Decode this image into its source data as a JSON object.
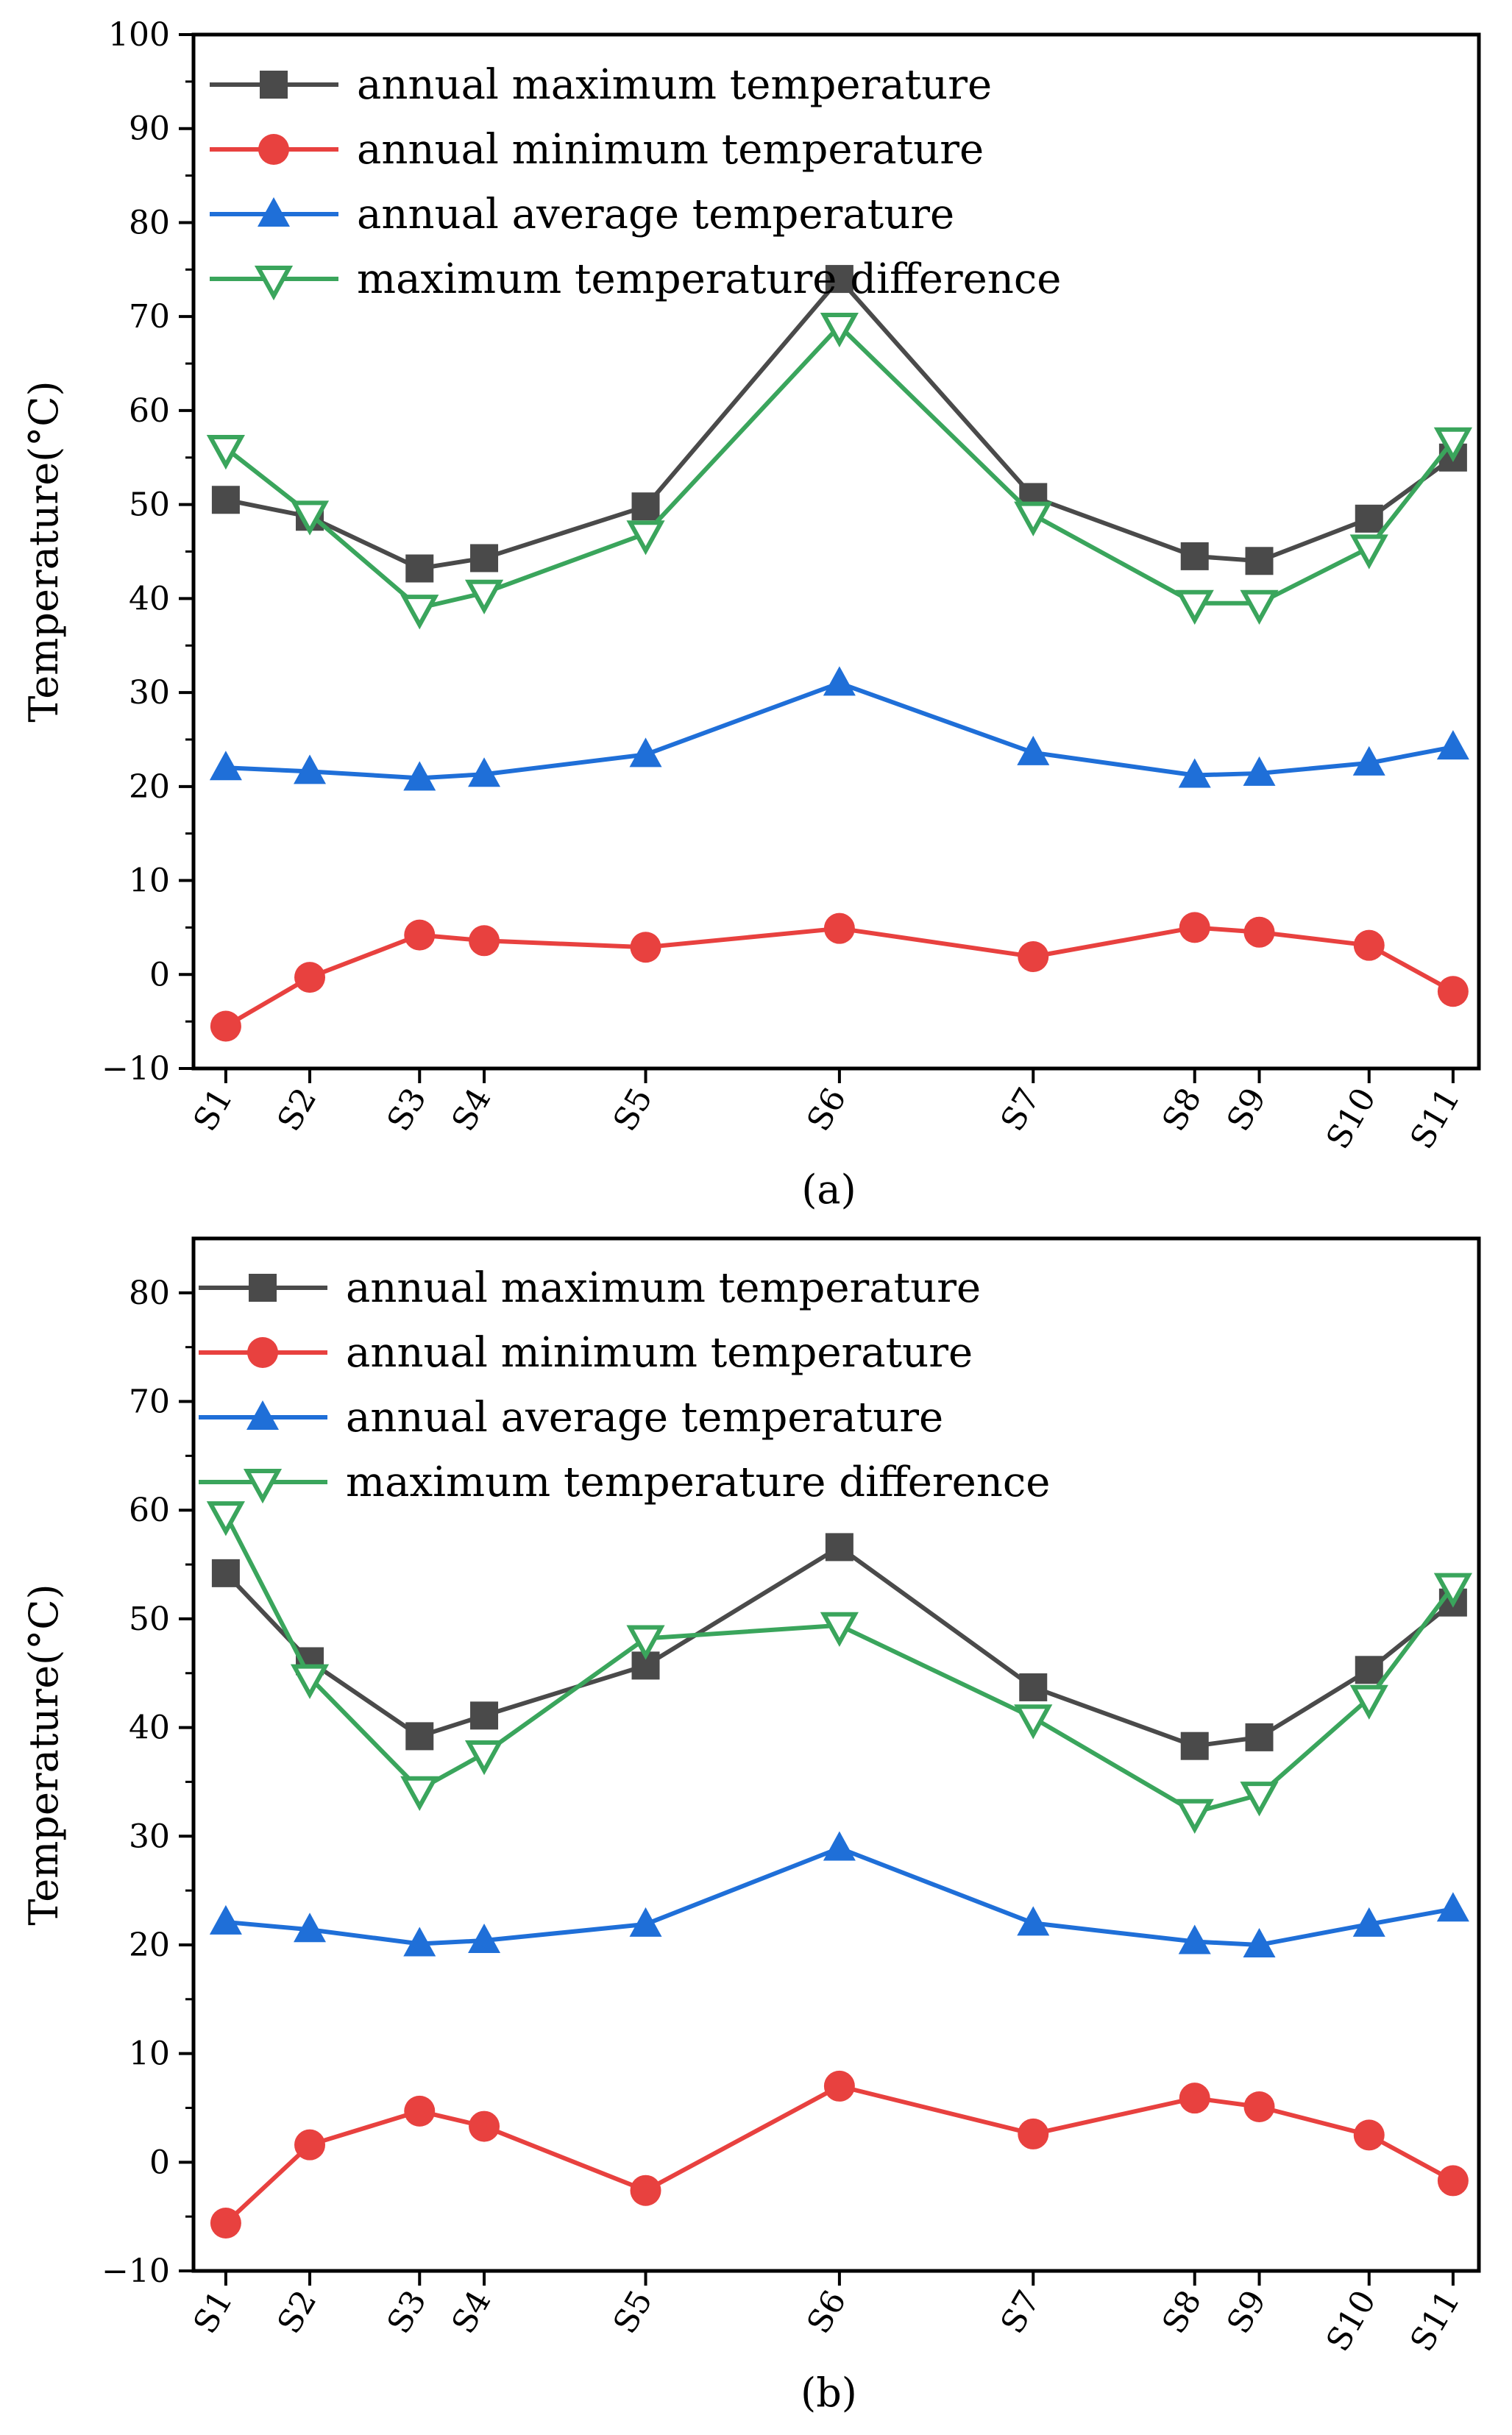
{
  "colors": {
    "max": "#4a4a4a",
    "min": "#e8413f",
    "avg": "#1f6fd8",
    "diff": "#3aa55c"
  },
  "chart_data": [
    {
      "type": "line",
      "caption": "(a)",
      "ylabel": "Temperature(°C)",
      "ylim": [
        -10,
        100
      ],
      "yticks": [
        -10,
        0,
        10,
        20,
        30,
        40,
        50,
        60,
        70,
        80,
        90,
        100
      ],
      "categories": [
        "S1",
        "S2",
        "S3",
        "S4",
        "S5",
        "S6",
        "S7",
        "S8",
        "S9",
        "S10",
        "S11"
      ],
      "x": [
        1,
        2.3,
        4,
        5,
        7.5,
        10.5,
        13.5,
        16,
        17,
        18.7,
        20
      ],
      "series": [
        {
          "key": "max",
          "name": "annual maximum temperature",
          "marker": "square",
          "values": [
            50.5,
            48.7,
            43.2,
            44.3,
            49.8,
            74.0,
            50.8,
            44.5,
            44.0,
            48.5,
            55.0
          ]
        },
        {
          "key": "min",
          "name": "annual minimum temperature",
          "marker": "circle",
          "values": [
            -5.5,
            -0.3,
            4.2,
            3.6,
            2.9,
            4.9,
            1.9,
            5.0,
            4.5,
            3.1,
            -1.8
          ]
        },
        {
          "key": "avg",
          "name": "annual average temperature",
          "marker": "triangle-up",
          "values": [
            22.0,
            21.6,
            20.9,
            21.3,
            23.4,
            31.0,
            23.6,
            21.2,
            21.4,
            22.5,
            24.2
          ]
        },
        {
          "key": "diff",
          "name": "maximum temperature difference",
          "marker": "triangle-down-open",
          "values": [
            56.0,
            49.0,
            39.0,
            40.6,
            46.9,
            69.0,
            48.9,
            39.5,
            39.5,
            45.4,
            56.8
          ]
        }
      ]
    },
    {
      "type": "line",
      "caption": "(b)",
      "ylabel": "Temperature(°C)",
      "ylim": [
        -10,
        85
      ],
      "yticks": [
        -10,
        0,
        10,
        20,
        30,
        40,
        50,
        60,
        70,
        80
      ],
      "categories": [
        "S1",
        "S2",
        "S3",
        "S4",
        "S5",
        "S6",
        "S7",
        "S8",
        "S9",
        "S10",
        "S11"
      ],
      "x": [
        1,
        2.3,
        4,
        5,
        7.5,
        10.5,
        13.5,
        16,
        17,
        18.7,
        20
      ],
      "series": [
        {
          "key": "max",
          "name": "annual maximum temperature",
          "marker": "square",
          "values": [
            54.2,
            46.1,
            39.2,
            41.1,
            45.7,
            56.6,
            43.7,
            38.3,
            39.1,
            45.3,
            51.5
          ]
        },
        {
          "key": "min",
          "name": "annual minimum temperature",
          "marker": "circle",
          "values": [
            -5.6,
            1.6,
            4.7,
            3.3,
            -2.6,
            7.0,
            2.6,
            5.9,
            5.1,
            2.5,
            -1.7
          ]
        },
        {
          "key": "avg",
          "name": "annual average temperature",
          "marker": "triangle-up",
          "values": [
            22.1,
            21.4,
            20.1,
            20.4,
            21.9,
            28.9,
            22.0,
            20.3,
            20.0,
            21.9,
            23.3
          ]
        },
        {
          "key": "diff",
          "name": "maximum temperature difference",
          "marker": "triangle-down-open",
          "values": [
            59.6,
            44.6,
            34.3,
            37.6,
            48.2,
            49.4,
            40.9,
            32.2,
            33.8,
            42.7,
            53.0
          ]
        }
      ]
    }
  ]
}
